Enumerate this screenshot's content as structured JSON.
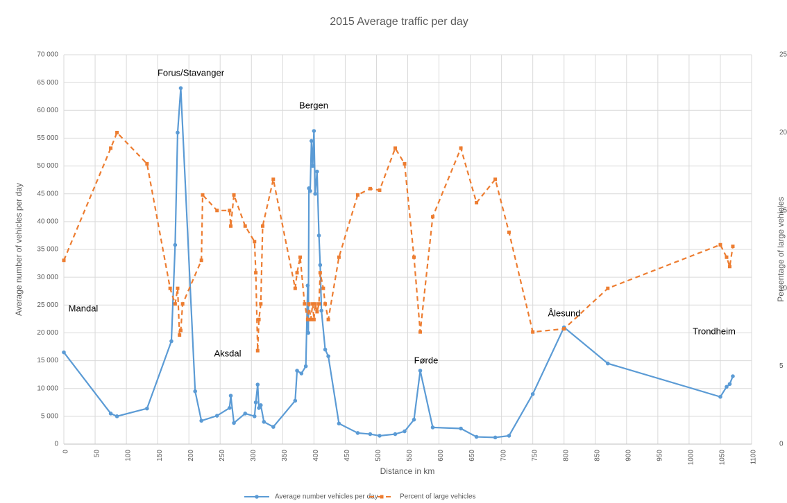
{
  "chart_data": {
    "type": "line",
    "title": "2015 Average traffic per day",
    "x_label": "Distance in km",
    "y_label": "Average number of  vehicles per day",
    "y2_label": "Percentage of large vehicles",
    "annotations": [
      "Forus/Stavanger",
      "Bergen",
      "Mandal",
      "Aksdal",
      "Førde",
      "Ålesund",
      "Trondheim"
    ],
    "xlim": [
      0,
      1100
    ],
    "xticks": [
      0,
      50,
      100,
      150,
      200,
      250,
      300,
      350,
      400,
      450,
      500,
      550,
      600,
      650,
      700,
      750,
      800,
      850,
      900,
      950,
      1000,
      1050,
      1100
    ],
    "ylim": [
      0,
      70000
    ],
    "yticks": [
      0,
      {
        "value": 5000,
        "label": "5 000"
      },
      {
        "value": 10000,
        "label": "10 000"
      },
      {
        "value": 15000,
        "label": "15 000"
      },
      {
        "value": 20000,
        "label": "20 000"
      },
      {
        "value": 25000,
        "label": "25 000"
      },
      {
        "value": 30000,
        "label": "30 000"
      },
      {
        "value": 35000,
        "label": "35 000"
      },
      {
        "value": 40000,
        "label": "40 000"
      },
      {
        "value": 45000,
        "label": "45 000"
      },
      {
        "value": 50000,
        "label": "50 000"
      },
      {
        "value": 55000,
        "label": "55 000"
      },
      {
        "value": 60000,
        "label": "60 000"
      },
      {
        "value": 65000,
        "label": "65 000"
      },
      {
        "value": 70000,
        "label": "70 000"
      }
    ],
    "y2lim": [
      0,
      25
    ],
    "y2ticks": [
      0,
      5,
      10,
      15,
      20,
      25
    ],
    "grid": true,
    "legend": "bottom",
    "series": [
      {
        "name": "Average number vehicles per day",
        "color": "#5b9bd5",
        "dash": false,
        "marker": "circle",
        "x": [
          0,
          75,
          85,
          133,
          172,
          178,
          182,
          187,
          210,
          220,
          245,
          265,
          267,
          272,
          290,
          305,
          307,
          310,
          312,
          315,
          320,
          335,
          370,
          373,
          380,
          387,
          390,
          391,
          392,
          394,
          396,
          398,
          400,
          402,
          405,
          408,
          410,
          412,
          418,
          423,
          440,
          470,
          490,
          505,
          530,
          545,
          560,
          570,
          590,
          635,
          660,
          690,
          712,
          750,
          800,
          870,
          1050,
          1060,
          1065,
          1070
        ],
        "values": [
          16500,
          5500,
          5000,
          6400,
          18500,
          35800,
          56000,
          64000,
          9500,
          4200,
          5100,
          6500,
          8700,
          3800,
          5500,
          5000,
          7500,
          10700,
          6500,
          7000,
          4000,
          3100,
          7800,
          13200,
          12700,
          14000,
          28500,
          20000,
          46000,
          45500,
          54500,
          50000,
          56300,
          45000,
          49000,
          37500,
          32200,
          24000,
          17000,
          15800,
          3700,
          2000,
          1800,
          1500,
          1800,
          2300,
          4400,
          13200,
          3000,
          2800,
          1300,
          1200,
          1500,
          9000,
          21000,
          14500,
          8500,
          10300,
          10800,
          12200
        ]
      },
      {
        "name": "Percent of large vehicles",
        "color": "#ed7d31",
        "dash": true,
        "marker": "square",
        "axis": "y2",
        "x": [
          0,
          75,
          85,
          133,
          170,
          178,
          182,
          185,
          187,
          190,
          220,
          222,
          245,
          265,
          267,
          272,
          290,
          305,
          307,
          310,
          312,
          315,
          318,
          335,
          370,
          373,
          378,
          385,
          390,
          392,
          395,
          398,
          400,
          402,
          405,
          408,
          410,
          415,
          418,
          423,
          440,
          470,
          490,
          505,
          530,
          545,
          560,
          570,
          590,
          635,
          660,
          690,
          712,
          750,
          800,
          870,
          1050,
          1060,
          1065,
          1070
        ],
        "values": [
          11.8,
          19,
          20,
          18,
          10,
          9,
          10,
          7,
          7.3,
          9,
          11.8,
          16,
          15,
          15,
          14,
          16,
          14,
          13,
          11,
          6,
          8,
          9,
          14,
          17,
          10,
          11,
          12,
          9,
          8,
          9,
          8,
          9,
          8,
          9,
          8.5,
          9,
          11,
          10,
          9,
          8,
          12,
          16,
          16.4,
          16.3,
          19,
          18,
          12,
          7.2,
          14.6,
          19,
          15.5,
          17,
          13.6,
          7.2,
          7.4,
          10,
          12.8,
          12,
          11.4,
          12.7
        ]
      }
    ]
  }
}
